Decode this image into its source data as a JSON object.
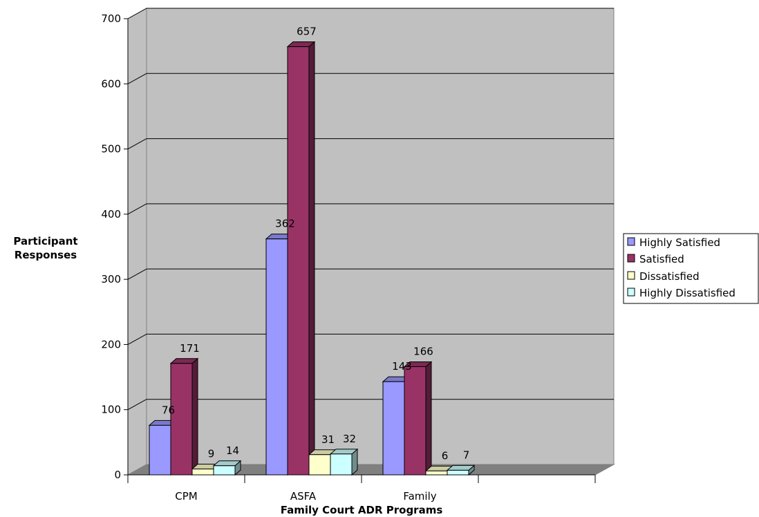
{
  "chart_data": {
    "type": "bar",
    "title": "",
    "xlabel": "Family Court ADR Programs",
    "ylabel": [
      "Participant",
      "Responses"
    ],
    "categories": [
      "CPM",
      "ASFA",
      "Family",
      ""
    ],
    "series": [
      {
        "name": "Highly Satisfied",
        "color": "#9999FF",
        "values": [
          76,
          362,
          143,
          null
        ]
      },
      {
        "name": "Satisfied",
        "color": "#993366",
        "values": [
          171,
          657,
          166,
          null
        ]
      },
      {
        "name": "Dissatisfied",
        "color": "#FFFFCC",
        "values": [
          9,
          31,
          6,
          null
        ]
      },
      {
        "name": "Highly Dissatisfied",
        "color": "#CCFFFF",
        "values": [
          14,
          32,
          7,
          null
        ]
      }
    ],
    "ylim": [
      0,
      700
    ],
    "yticks": [
      0,
      100,
      200,
      300,
      400,
      500,
      600,
      700
    ],
    "grid": true,
    "three_d": true,
    "legend_position": "right",
    "wall_color": "#C0C0C0",
    "floor_color": "#808080"
  }
}
